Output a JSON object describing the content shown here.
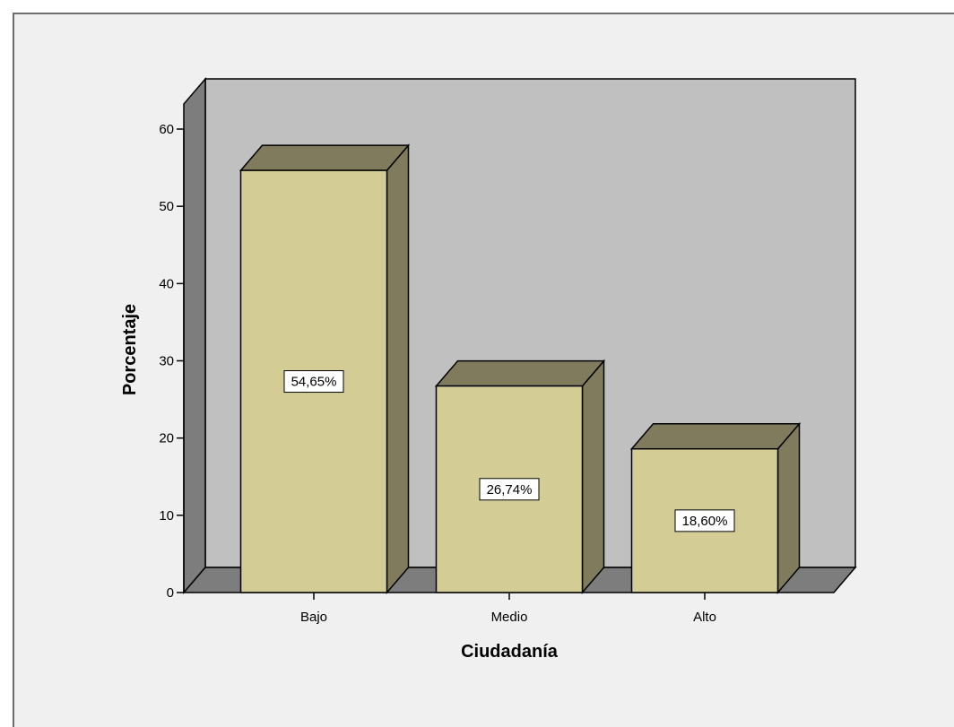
{
  "chart_data": {
    "type": "bar",
    "categories": [
      "Bajo",
      "Medio",
      "Alto"
    ],
    "values": [
      54.65,
      26.74,
      18.6
    ],
    "data_labels": [
      "54,65%",
      "26,74%",
      "18,60%"
    ],
    "xlabel": "Ciudadanía",
    "ylabel": "Porcentaje",
    "ylim": [
      0,
      60
    ],
    "yticks": [
      0,
      10,
      20,
      30,
      40,
      50,
      60
    ],
    "grid": false,
    "style": "3d",
    "colors": {
      "bar_front": "#d3cd95",
      "bar_top": "#7f7b5c",
      "bar_side": "#7f7b5c",
      "back_wall": "#c0c0c0",
      "side_wall": "#7d7d7d",
      "floor": "#7d7d7d",
      "frame_background": "#f0f0f0"
    }
  }
}
